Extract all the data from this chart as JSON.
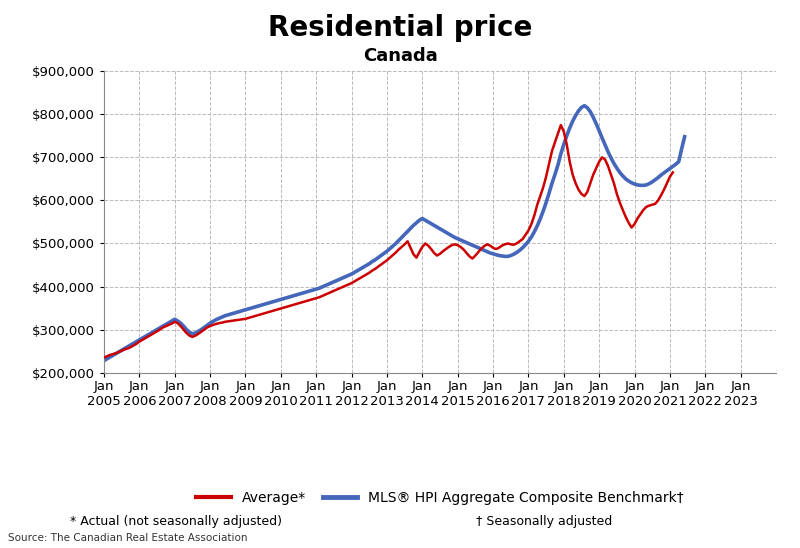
{
  "title": "Residential price",
  "subtitle": "Canada",
  "ylim": [
    200000,
    900000
  ],
  "yticks": [
    200000,
    300000,
    400000,
    500000,
    600000,
    700000,
    800000,
    900000
  ],
  "source_text": "Source: The Canadian Real Estate Association",
  "footnote_left": "* Actual (not seasonally adjusted)",
  "footnote_right": "† Seasonally adjusted",
  "legend_avg": "Average*",
  "legend_hpi": "MLS® HPI Aggregate Composite Benchmark†",
  "avg_color": "#cc0000",
  "hpi_color": "#4466bb",
  "background_color": "#ffffff",
  "avg_linewidth": 1.8,
  "hpi_linewidth": 2.6,
  "title_fontsize": 20,
  "subtitle_fontsize": 13,
  "tick_fontsize": 9.5,
  "x_tick_years": [
    2005,
    2006,
    2007,
    2008,
    2009,
    2010,
    2011,
    2012,
    2013,
    2014,
    2015,
    2016,
    2017,
    2018,
    2019,
    2020,
    2021,
    2022,
    2023
  ],
  "avg_data": [
    235000,
    238000,
    241000,
    243000,
    245000,
    248000,
    251000,
    254000,
    256000,
    259000,
    263000,
    267000,
    272000,
    276000,
    280000,
    284000,
    288000,
    292000,
    296000,
    300000,
    305000,
    308000,
    311000,
    314000,
    318000,
    315000,
    308000,
    300000,
    292000,
    286000,
    283000,
    286000,
    290000,
    295000,
    300000,
    305000,
    308000,
    311000,
    313000,
    315000,
    316000,
    318000,
    319000,
    320000,
    321000,
    322000,
    323000,
    324000,
    325000,
    327000,
    329000,
    331000,
    333000,
    335000,
    337000,
    339000,
    341000,
    343000,
    345000,
    347000,
    349000,
    351000,
    353000,
    355000,
    357000,
    359000,
    361000,
    363000,
    365000,
    367000,
    369000,
    371000,
    373000,
    375000,
    378000,
    381000,
    384000,
    387000,
    390000,
    393000,
    396000,
    399000,
    402000,
    405000,
    408000,
    412000,
    416000,
    420000,
    424000,
    428000,
    432000,
    437000,
    441000,
    446000,
    451000,
    456000,
    461000,
    467000,
    473000,
    479000,
    486000,
    492000,
    498000,
    505000,
    490000,
    475000,
    467000,
    480000,
    492000,
    500000,
    495000,
    487000,
    478000,
    472000,
    476000,
    482000,
    487000,
    492000,
    496000,
    498000,
    496000,
    492000,
    486000,
    478000,
    470000,
    465000,
    472000,
    480000,
    488000,
    494000,
    498000,
    495000,
    490000,
    487000,
    490000,
    495000,
    498000,
    500000,
    498000,
    497000,
    500000,
    505000,
    510000,
    520000,
    530000,
    545000,
    565000,
    590000,
    610000,
    630000,
    655000,
    685000,
    715000,
    735000,
    755000,
    775000,
    760000,
    730000,
    690000,
    660000,
    640000,
    625000,
    615000,
    610000,
    620000,
    640000,
    660000,
    675000,
    690000,
    700000,
    695000,
    680000,
    660000,
    640000,
    615000,
    595000,
    578000,
    562000,
    548000,
    537000,
    545000,
    558000,
    568000,
    578000,
    585000,
    588000,
    590000,
    592000,
    600000,
    612000,
    625000,
    640000,
    655000,
    665000
  ],
  "hpi_data": [
    228000,
    232000,
    236000,
    240000,
    244000,
    248000,
    252000,
    256000,
    260000,
    264000,
    268000,
    272000,
    276000,
    280000,
    284000,
    288000,
    292000,
    296000,
    300000,
    304000,
    308000,
    312000,
    316000,
    320000,
    324000,
    320000,
    315000,
    308000,
    300000,
    294000,
    290000,
    292000,
    296000,
    300000,
    305000,
    310000,
    315000,
    319000,
    323000,
    326000,
    329000,
    332000,
    334000,
    336000,
    338000,
    340000,
    342000,
    344000,
    346000,
    348000,
    350000,
    352000,
    354000,
    356000,
    358000,
    360000,
    362000,
    364000,
    366000,
    368000,
    370000,
    372000,
    374000,
    376000,
    378000,
    380000,
    382000,
    384000,
    386000,
    388000,
    390000,
    392000,
    394000,
    396000,
    399000,
    402000,
    405000,
    408000,
    411000,
    414000,
    417000,
    420000,
    423000,
    426000,
    429000,
    433000,
    437000,
    441000,
    445000,
    449000,
    453000,
    458000,
    462000,
    467000,
    472000,
    477000,
    482000,
    488000,
    494000,
    500000,
    507000,
    514000,
    521000,
    528000,
    535000,
    542000,
    548000,
    554000,
    558000,
    554000,
    550000,
    546000,
    542000,
    538000,
    534000,
    530000,
    526000,
    522000,
    518000,
    514000,
    511000,
    508000,
    505000,
    502000,
    499000,
    496000,
    493000,
    490000,
    487000,
    484000,
    481000,
    478000,
    476000,
    474000,
    472000,
    471000,
    470000,
    470000,
    472000,
    475000,
    479000,
    484000,
    490000,
    497000,
    505000,
    515000,
    527000,
    541000,
    557000,
    575000,
    595000,
    617000,
    640000,
    660000,
    682000,
    708000,
    730000,
    750000,
    768000,
    784000,
    797000,
    808000,
    816000,
    820000,
    815000,
    806000,
    793000,
    778000,
    762000,
    745000,
    729000,
    713000,
    699000,
    686000,
    675000,
    665000,
    657000,
    650000,
    645000,
    641000,
    638000,
    636000,
    635000,
    635000,
    636000,
    639000,
    643000,
    648000,
    653000,
    659000,
    664000,
    669000,
    674000,
    679000,
    684000,
    690000,
    720000,
    748000
  ]
}
